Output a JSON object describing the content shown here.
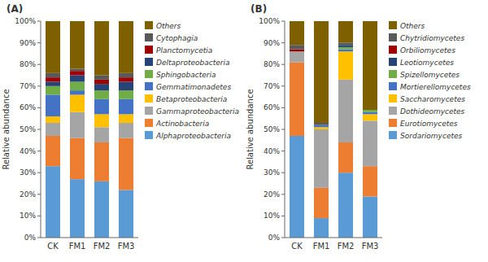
{
  "chart_data": [
    {
      "type": "bar",
      "stacked": true,
      "title": "(A)",
      "y_label": "Relative abundance",
      "categories": [
        "CK",
        "FM1",
        "FM2",
        "FM3"
      ],
      "series": [
        {
          "name": "Alphaproteobacteria",
          "color": "#5B9BD5",
          "values": [
            33,
            27,
            26,
            22
          ]
        },
        {
          "name": "Actinobacteria",
          "color": "#ED7D31",
          "values": [
            14,
            19,
            18,
            24
          ]
        },
        {
          "name": "Gammaproteobacteria",
          "color": "#A5A5A5",
          "values": [
            6,
            12,
            7,
            7
          ]
        },
        {
          "name": "Betaproteobacteria",
          "color": "#FFC000",
          "values": [
            3,
            8,
            6,
            4
          ]
        },
        {
          "name": "Gemmatimonadetes",
          "color": "#4472C4",
          "values": [
            10,
            2,
            7,
            7
          ]
        },
        {
          "name": "Sphingobacteria",
          "color": "#70AD47",
          "values": [
            4,
            4,
            4,
            4
          ]
        },
        {
          "name": "Deltaproteobacteria",
          "color": "#264478",
          "values": [
            2,
            3,
            3,
            4
          ]
        },
        {
          "name": "Planctomycetia",
          "color": "#9E0000",
          "values": [
            2,
            2,
            2,
            2
          ]
        },
        {
          "name": "Cytophagia",
          "color": "#595959",
          "values": [
            2,
            1,
            2,
            2
          ]
        },
        {
          "name": "Others",
          "color": "#7F6000",
          "values": [
            24,
            22,
            25,
            24
          ]
        }
      ],
      "ylim": [
        0,
        100
      ],
      "yticks": [
        {
          "value": 0,
          "label": "0%"
        },
        {
          "value": 10,
          "label": "10%"
        },
        {
          "value": 20,
          "label": "20%"
        },
        {
          "value": 30,
          "label": "30%"
        },
        {
          "value": 40,
          "label": "40%"
        },
        {
          "value": 50,
          "label": "50%"
        },
        {
          "value": 60,
          "label": "60%"
        },
        {
          "value": 70,
          "label": "70%"
        },
        {
          "value": 80,
          "label": "80%"
        },
        {
          "value": 90,
          "label": "90%"
        },
        {
          "value": 100,
          "label": "100%"
        }
      ],
      "grid": false,
      "legend": "right"
    },
    {
      "type": "bar",
      "stacked": true,
      "title": "(B)",
      "y_label": "Relative abundance",
      "categories": [
        "CK",
        "FM1",
        "FM2",
        "FM3"
      ],
      "series": [
        {
          "name": "Sordariomycetes",
          "color": "#5B9BD5",
          "values": [
            47,
            9,
            30,
            19
          ]
        },
        {
          "name": "Eurotiomycetes",
          "color": "#ED7D31",
          "values": [
            34,
            14,
            14,
            14
          ]
        },
        {
          "name": "Dothideomycetes",
          "color": "#A5A5A5",
          "values": [
            5,
            27,
            29,
            21
          ]
        },
        {
          "name": "Saccharomycetes",
          "color": "#FFC000",
          "values": [
            0,
            1,
            13,
            3
          ]
        },
        {
          "name": "Mortierellomycetes",
          "color": "#4472C4",
          "values": [
            0,
            1,
            1,
            1
          ]
        },
        {
          "name": "Spizellomycetes",
          "color": "#70AD47",
          "values": [
            0,
            0,
            1,
            1
          ]
        },
        {
          "name": "Leotiomycetes",
          "color": "#264478",
          "values": [
            0,
            0,
            1,
            0
          ]
        },
        {
          "name": "Orbiliomycetes",
          "color": "#9E0000",
          "values": [
            1,
            0,
            0,
            0
          ]
        },
        {
          "name": "Chytridiomycetes",
          "color": "#595959",
          "values": [
            2,
            1,
            1,
            0
          ]
        },
        {
          "name": "Others",
          "color": "#7F6000",
          "values": [
            11,
            47,
            10,
            41
          ]
        }
      ],
      "ylim": [
        0,
        100
      ],
      "yticks": [
        {
          "value": 0,
          "label": "0%"
        },
        {
          "value": 10,
          "label": "10%"
        },
        {
          "value": 20,
          "label": "20%"
        },
        {
          "value": 30,
          "label": "30%"
        },
        {
          "value": 40,
          "label": "40%"
        },
        {
          "value": 50,
          "label": "50%"
        },
        {
          "value": 60,
          "label": "60%"
        },
        {
          "value": 70,
          "label": "70%"
        },
        {
          "value": 80,
          "label": "80%"
        },
        {
          "value": 90,
          "label": "90%"
        },
        {
          "value": 100,
          "label": "100%"
        }
      ],
      "grid": false,
      "legend": "right"
    }
  ]
}
